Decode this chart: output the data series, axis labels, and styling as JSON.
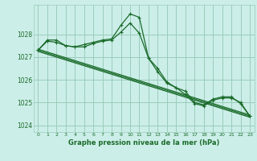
{
  "background_color": "#cceee8",
  "grid_color": "#99ccbb",
  "line_color": "#1a6b2a",
  "title": "Graphe pression niveau de la mer (hPa)",
  "xlim": [
    -0.5,
    23.5
  ],
  "ylim": [
    1023.7,
    1029.3
  ],
  "yticks": [
    1024,
    1025,
    1026,
    1027,
    1028
  ],
  "xticks": [
    0,
    1,
    2,
    3,
    4,
    5,
    6,
    7,
    8,
    9,
    10,
    11,
    12,
    13,
    14,
    15,
    16,
    17,
    18,
    19,
    20,
    21,
    22,
    23
  ],
  "series": [
    {
      "x": [
        0,
        1,
        2,
        3,
        4,
        5,
        6,
        7,
        8,
        9,
        10,
        11,
        12,
        13,
        14,
        15,
        16,
        17,
        18,
        19,
        20,
        21,
        22,
        23
      ],
      "y": [
        1027.3,
        1027.75,
        1027.75,
        1027.5,
        1027.45,
        1027.45,
        1027.6,
        1027.7,
        1027.75,
        1028.1,
        1028.5,
        1028.05,
        1026.95,
        1026.35,
        1025.85,
        1025.65,
        1025.35,
        1024.95,
        1024.85,
        1025.1,
        1025.2,
        1025.2,
        1025.0,
        1024.4
      ]
    },
    {
      "x": [
        0,
        1,
        2,
        3,
        4,
        5,
        6,
        7,
        8,
        9,
        10,
        11,
        12,
        13,
        14,
        15,
        16,
        17,
        18,
        19,
        20,
        21,
        22,
        23
      ],
      "y": [
        1027.3,
        1027.7,
        1027.65,
        1027.5,
        1027.45,
        1027.55,
        1027.65,
        1027.75,
        1027.8,
        1028.4,
        1028.9,
        1028.75,
        1026.95,
        1026.5,
        1025.9,
        1025.65,
        1025.5,
        1025.0,
        1024.9,
        1025.15,
        1025.25,
        1025.25,
        1024.95,
        1024.4
      ]
    },
    {
      "x": [
        0,
        23
      ],
      "y": [
        1027.3,
        1024.4
      ]
    },
    {
      "x": [
        0,
        23
      ],
      "y": [
        1027.35,
        1024.45
      ]
    },
    {
      "x": [
        0,
        23
      ],
      "y": [
        1027.25,
        1024.35
      ]
    }
  ]
}
